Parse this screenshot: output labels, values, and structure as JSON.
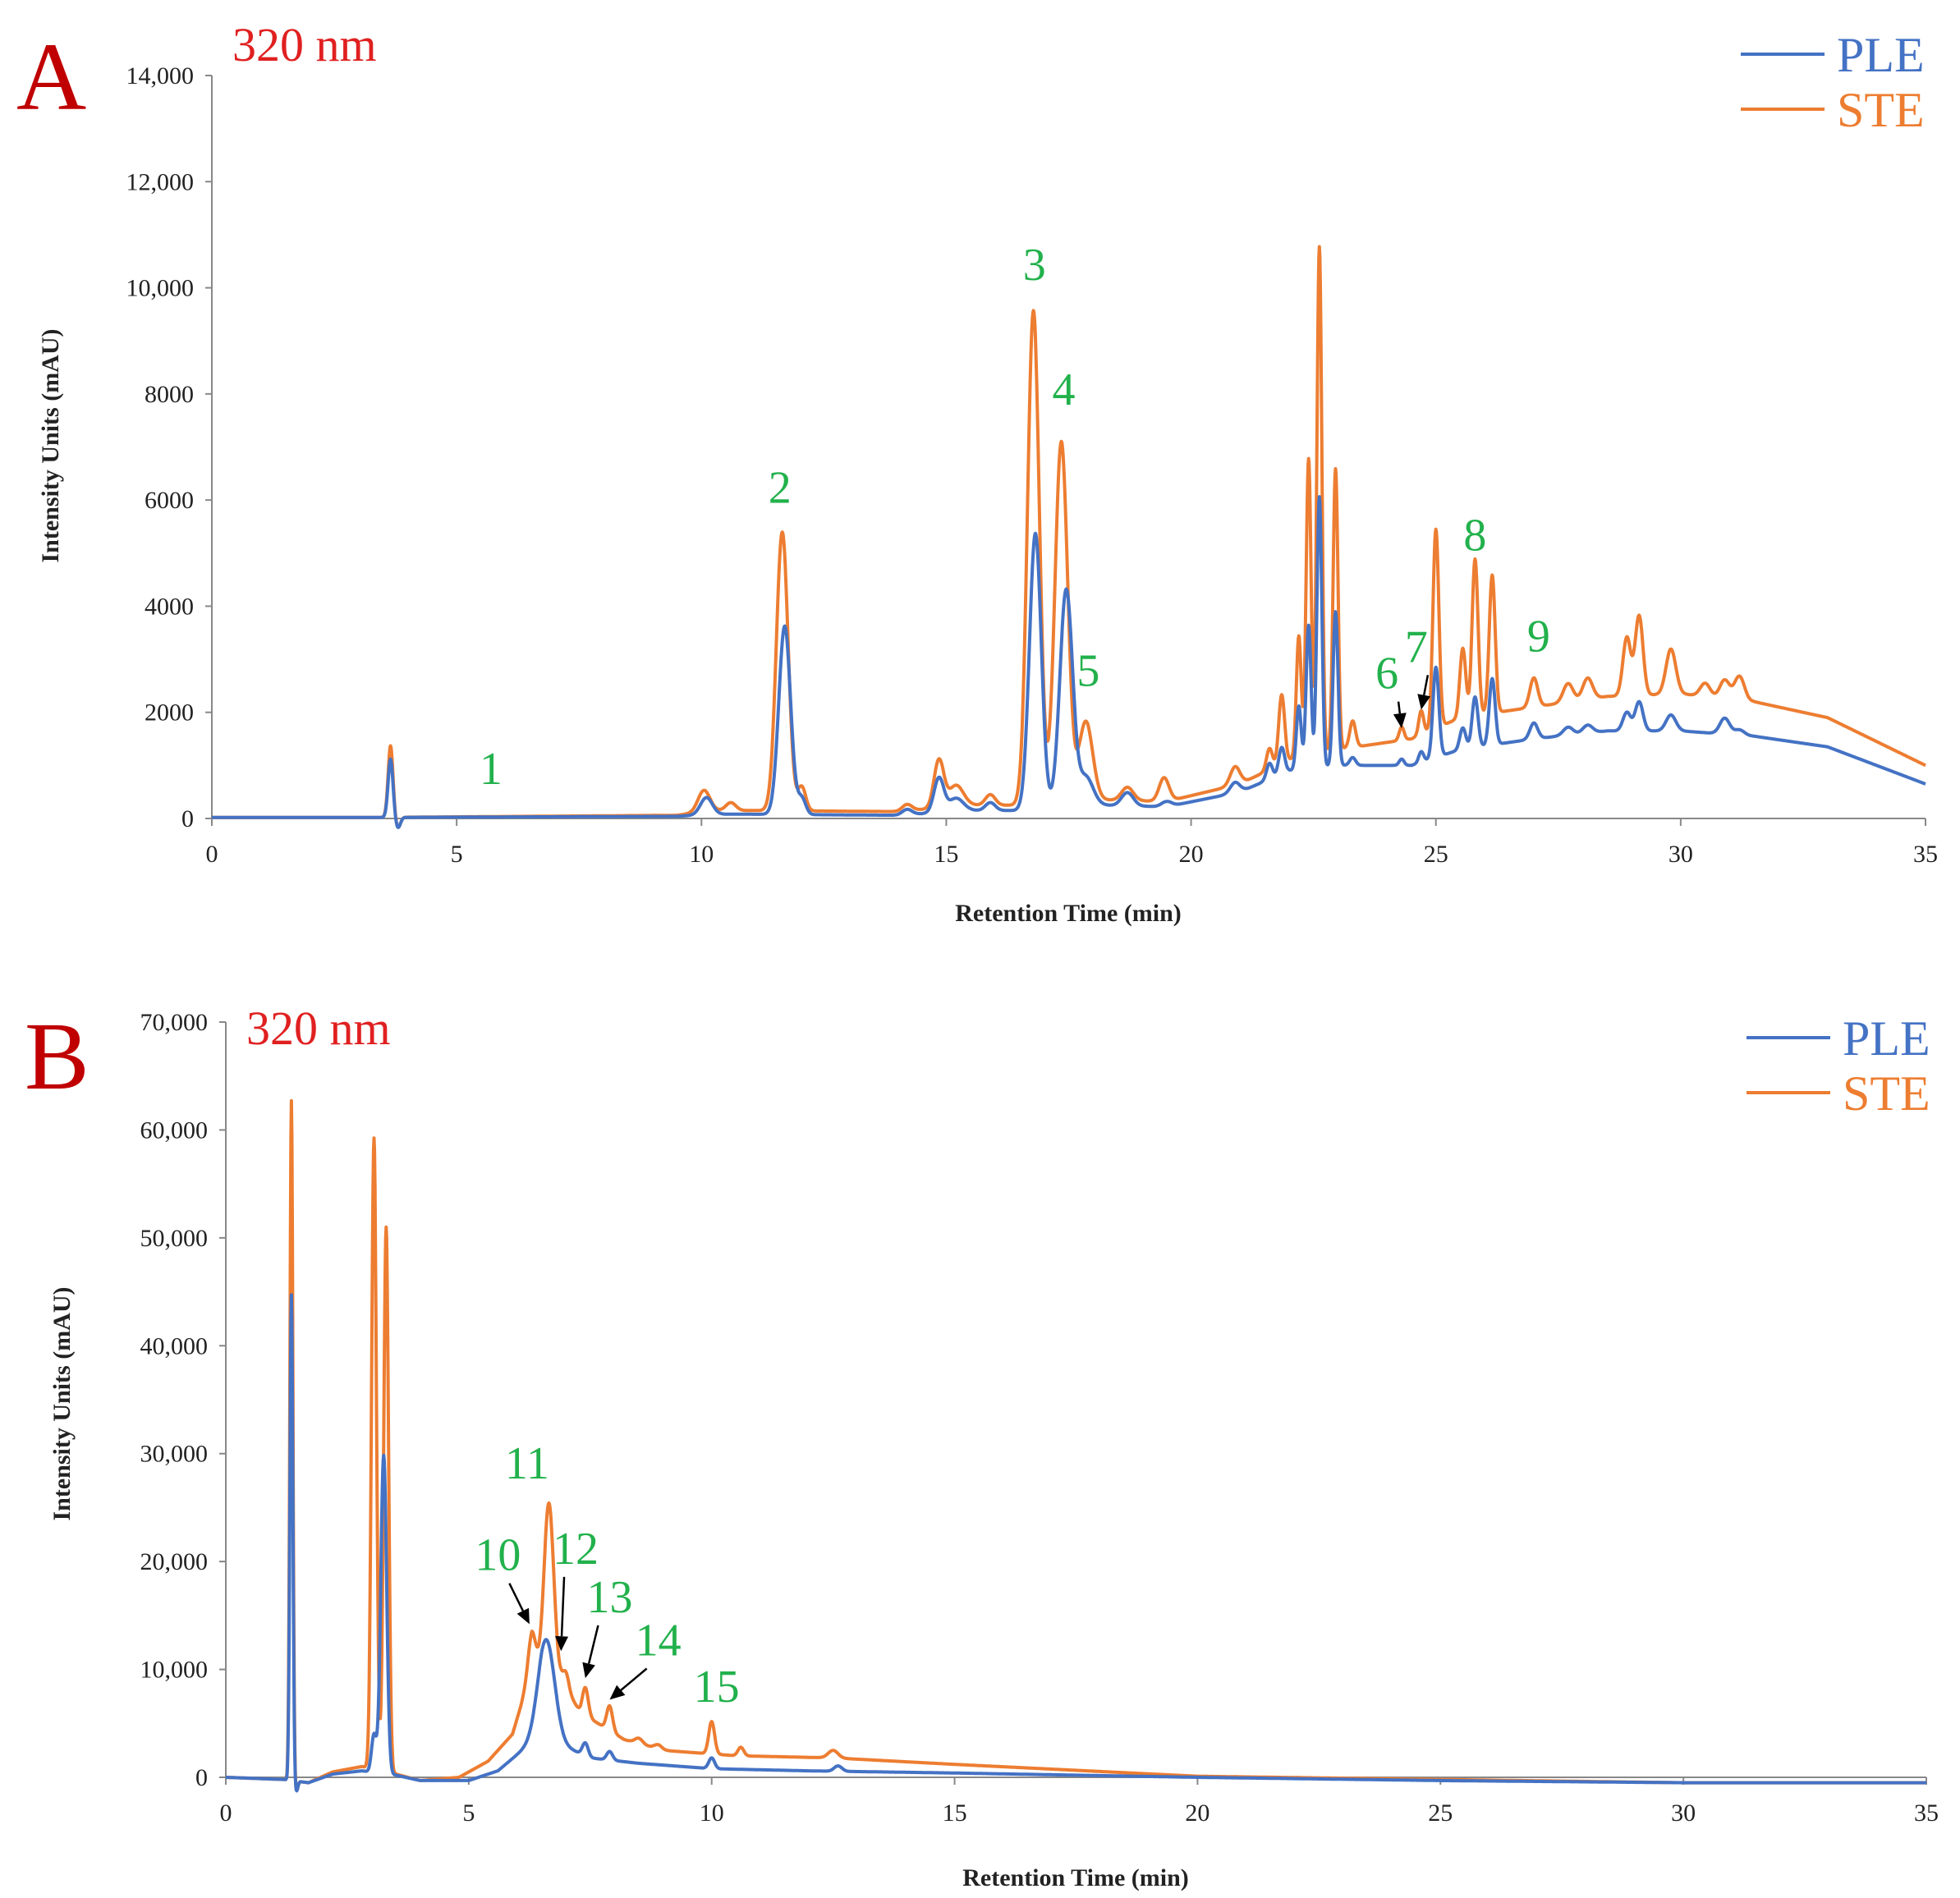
{
  "colors": {
    "PLE": "#4472c4",
    "STE": "#ed7d31",
    "peak": "#22b14c",
    "panel": "#c00000",
    "wavelength": "#e02020"
  },
  "chart_data": [
    {
      "type": "line",
      "panel": "A",
      "title": "320 nm",
      "xlabel": "Retention Time (min)",
      "ylabel": "Intensity Units (mAU)",
      "xlim": [
        0,
        35
      ],
      "ylim": [
        0,
        14000
      ],
      "xticks": [
        0,
        5,
        10,
        15,
        20,
        25,
        30,
        35
      ],
      "xtick_labels": [
        "0",
        "5",
        "10",
        "15",
        "20",
        "25",
        "30",
        "35"
      ],
      "yticks": [
        0,
        2000,
        4000,
        6000,
        8000,
        10000,
        12000,
        14000
      ],
      "ytick_labels": [
        "0",
        "2000",
        "4000",
        "6000",
        "8000",
        "10,000",
        "12,000",
        "14,000"
      ],
      "legend": {
        "position": "top-right",
        "entries": [
          "PLE",
          "STE"
        ]
      },
      "peak_labels": [
        {
          "label": "1",
          "x": 5.7,
          "y": 650
        },
        {
          "label": "2",
          "x": 11.6,
          "y": 5950
        },
        {
          "label": "3",
          "x": 16.8,
          "y": 10150
        },
        {
          "label": "4",
          "x": 17.4,
          "y": 7800
        },
        {
          "label": "5",
          "x": 17.9,
          "y": 2500
        },
        {
          "label": "6",
          "x": 24.0,
          "y": 2450,
          "arrow_to": [
            24.3,
            1700
          ]
        },
        {
          "label": "7",
          "x": 24.6,
          "y": 2950,
          "arrow_to": [
            24.7,
            2050
          ]
        },
        {
          "label": "8",
          "x": 25.8,
          "y": 5050
        },
        {
          "label": "9",
          "x": 27.1,
          "y": 3150
        }
      ],
      "series": [
        {
          "name": "PLE",
          "baseline": [
            [
              0,
              20
            ],
            [
              3.4,
              20
            ],
            [
              9.5,
              40
            ],
            [
              10.2,
              80
            ],
            [
              11,
              80
            ],
            [
              14,
              60
            ],
            [
              15.5,
              150
            ],
            [
              16.4,
              150
            ],
            [
              18.2,
              250
            ],
            [
              19.5,
              220
            ],
            [
              21,
              500
            ],
            [
              22,
              900
            ],
            [
              23,
              1000
            ],
            [
              24.5,
              1000
            ],
            [
              25.5,
              1300
            ],
            [
              27,
              1500
            ],
            [
              28.5,
              1650
            ],
            [
              30,
              1650
            ],
            [
              31.5,
              1550
            ],
            [
              33,
              1350
            ],
            [
              35,
              650
            ]
          ],
          "peaks": [
            [
              3.65,
              1100,
              0.05
            ],
            [
              3.8,
              -200,
              0.05
            ],
            [
              10.1,
              320,
              0.12
            ],
            [
              11.7,
              3550,
              0.12
            ],
            [
              12.05,
              300,
              0.08
            ],
            [
              14.2,
              100,
              0.1
            ],
            [
              14.85,
              650,
              0.1
            ],
            [
              15.2,
              250,
              0.15
            ],
            [
              15.9,
              150,
              0.1
            ],
            [
              16.82,
              5200,
              0.12
            ],
            [
              17.45,
              4100,
              0.13
            ],
            [
              17.85,
              550,
              0.15
            ],
            [
              18.7,
              250,
              0.12
            ],
            [
              19.5,
              100,
              0.1
            ],
            [
              20.9,
              200,
              0.1
            ],
            [
              21.6,
              300,
              0.06
            ],
            [
              21.85,
              500,
              0.06
            ],
            [
              22.2,
              1200,
              0.05
            ],
            [
              22.4,
              2700,
              0.05
            ],
            [
              22.62,
              5100,
              0.05
            ],
            [
              22.95,
              2900,
              0.05
            ],
            [
              23.3,
              150,
              0.06
            ],
            [
              24.3,
              120,
              0.05
            ],
            [
              24.7,
              200,
              0.05
            ],
            [
              25.0,
              1700,
              0.06
            ],
            [
              25.55,
              400,
              0.06
            ],
            [
              25.8,
              950,
              0.06
            ],
            [
              26.15,
              1250,
              0.06
            ],
            [
              27.0,
              300,
              0.08
            ],
            [
              27.7,
              150,
              0.1
            ],
            [
              28.1,
              150,
              0.1
            ],
            [
              28.9,
              350,
              0.08
            ],
            [
              29.15,
              550,
              0.08
            ],
            [
              29.8,
              300,
              0.1
            ],
            [
              30.9,
              300,
              0.1
            ],
            [
              31.2,
              100,
              0.1
            ]
          ]
        },
        {
          "name": "STE",
          "baseline": [
            [
              0,
              20
            ],
            [
              3.4,
              20
            ],
            [
              9.5,
              60
            ],
            [
              10.2,
              150
            ],
            [
              11,
              150
            ],
            [
              14,
              130
            ],
            [
              15.5,
              250
            ],
            [
              16.4,
              250
            ],
            [
              18.2,
              350
            ],
            [
              19.5,
              320
            ],
            [
              21,
              650
            ],
            [
              22,
              1100
            ],
            [
              23,
              1300
            ],
            [
              24.5,
              1500
            ],
            [
              25.5,
              1900
            ],
            [
              27,
              2100
            ],
            [
              28.5,
              2300
            ],
            [
              30,
              2350
            ],
            [
              31.5,
              2200
            ],
            [
              33,
              1900
            ],
            [
              35,
              1000
            ]
          ],
          "peaks": [
            [
              3.65,
              1350,
              0.05
            ],
            [
              3.8,
              -200,
              0.05
            ],
            [
              10.05,
              400,
              0.12
            ],
            [
              10.6,
              150,
              0.1
            ],
            [
              11.65,
              5250,
              0.12
            ],
            [
              12.05,
              450,
              0.08
            ],
            [
              14.2,
              120,
              0.1
            ],
            [
              14.85,
              900,
              0.1
            ],
            [
              15.2,
              400,
              0.15
            ],
            [
              15.9,
              200,
              0.1
            ],
            [
              16.78,
              9300,
              0.12
            ],
            [
              17.35,
              6800,
              0.13
            ],
            [
              17.85,
              1500,
              0.14
            ],
            [
              18.7,
              250,
              0.12
            ],
            [
              19.45,
              450,
              0.1
            ],
            [
              20.9,
              350,
              0.1
            ],
            [
              21.6,
              400,
              0.06
            ],
            [
              21.85,
              1300,
              0.06
            ],
            [
              22.2,
              2300,
              0.05
            ],
            [
              22.4,
              5600,
              0.05
            ],
            [
              22.62,
              9550,
              0.05
            ],
            [
              22.95,
              5300,
              0.05
            ],
            [
              23.3,
              500,
              0.06
            ],
            [
              24.3,
              250,
              0.05
            ],
            [
              24.7,
              450,
              0.05
            ],
            [
              25.0,
              3750,
              0.06
            ],
            [
              25.55,
              1300,
              0.06
            ],
            [
              25.8,
              2950,
              0.06
            ],
            [
              26.15,
              2600,
              0.06
            ],
            [
              27.0,
              550,
              0.08
            ],
            [
              27.7,
              350,
              0.1
            ],
            [
              28.1,
              400,
              0.1
            ],
            [
              28.9,
              1100,
              0.08
            ],
            [
              29.15,
              1500,
              0.08
            ],
            [
              29.8,
              850,
              0.1
            ],
            [
              30.5,
              250,
              0.1
            ],
            [
              30.9,
              350,
              0.1
            ],
            [
              31.2,
              450,
              0.1
            ]
          ]
        }
      ]
    },
    {
      "type": "line",
      "panel": "B",
      "title": "320 nm",
      "xlabel": "Retention Time (min)",
      "ylabel": "Intensity Units (mAU)",
      "xlim": [
        0,
        35
      ],
      "ylim": [
        0,
        70000
      ],
      "xticks": [
        0,
        5,
        10,
        15,
        20,
        25,
        30,
        35
      ],
      "xtick_labels": [
        "0",
        "5",
        "10",
        "15",
        "20",
        "25",
        "30",
        "35"
      ],
      "yticks": [
        0,
        10000,
        20000,
        30000,
        40000,
        50000,
        60000,
        70000
      ],
      "ytick_labels": [
        "0",
        "10,000",
        "20,000",
        "30,000",
        "40,000",
        "50,000",
        "60,000",
        "70,000"
      ],
      "legend": {
        "position": "top-right",
        "entries": [
          "PLE",
          "STE"
        ]
      },
      "peak_labels": [
        {
          "label": "10",
          "x": 5.6,
          "y": 19200,
          "arrow_to": [
            6.25,
            14200
          ]
        },
        {
          "label": "11",
          "x": 6.2,
          "y": 27700
        },
        {
          "label": "12",
          "x": 7.2,
          "y": 19800,
          "arrow_to": [
            6.9,
            11700
          ]
        },
        {
          "label": "13",
          "x": 7.9,
          "y": 15300,
          "arrow_to": [
            7.4,
            9200
          ]
        },
        {
          "label": "14",
          "x": 8.9,
          "y": 11300,
          "arrow_to": [
            7.9,
            7200
          ]
        },
        {
          "label": "15",
          "x": 10.1,
          "y": 7000
        }
      ],
      "series": [
        {
          "name": "PLE",
          "baseline": [
            [
              0,
              0
            ],
            [
              1.2,
              -200
            ],
            [
              1.7,
              -500
            ],
            [
              2.2,
              300
            ],
            [
              2.8,
              600
            ],
            [
              3.5,
              200
            ],
            [
              4.0,
              -300
            ],
            [
              5.0,
              -300
            ],
            [
              5.6,
              600
            ],
            [
              6.1,
              2500
            ],
            [
              6.5,
              4000
            ],
            [
              7.0,
              2800
            ],
            [
              7.5,
              1800
            ],
            [
              8.5,
              1300
            ],
            [
              10,
              800
            ],
            [
              12,
              600
            ],
            [
              15,
              400
            ],
            [
              20,
              0
            ],
            [
              25,
              -300
            ],
            [
              30,
              -500
            ],
            [
              35,
              -500
            ]
          ],
          "peaks": [
            [
              1.35,
              45000,
              0.03
            ],
            [
              1.45,
              -1000,
              0.03
            ],
            [
              3.05,
              3500,
              0.05
            ],
            [
              3.25,
              29500,
              0.06
            ],
            [
              6.6,
              9000,
              0.17
            ],
            [
              7.4,
              1200,
              0.06
            ],
            [
              7.9,
              800,
              0.06
            ],
            [
              10.0,
              1000,
              0.06
            ],
            [
              12.6,
              500,
              0.08
            ]
          ]
        },
        {
          "name": "STE",
          "baseline": [
            [
              0,
              0
            ],
            [
              1.2,
              -200
            ],
            [
              1.7,
              -500
            ],
            [
              2.2,
              500
            ],
            [
              2.8,
              1000
            ],
            [
              3.5,
              300
            ],
            [
              4.0,
              -300
            ],
            [
              4.8,
              0
            ],
            [
              5.4,
              1500
            ],
            [
              5.9,
              4000
            ],
            [
              6.3,
              10000
            ],
            [
              6.9,
              9000
            ],
            [
              7.3,
              6000
            ],
            [
              8.2,
              3500
            ],
            [
              9,
              2500
            ],
            [
              10.5,
              2000
            ],
            [
              12.5,
              1800
            ],
            [
              15,
              1200
            ],
            [
              20,
              100
            ],
            [
              25,
              -200
            ],
            [
              30,
              -500
            ],
            [
              35,
              -500
            ]
          ],
          "peaks": [
            [
              1.35,
              63000,
              0.03
            ],
            [
              1.45,
              -1000,
              0.03
            ],
            [
              3.05,
              58500,
              0.05
            ],
            [
              3.3,
              50500,
              0.05
            ],
            [
              6.3,
              3500,
              0.08
            ],
            [
              6.65,
              16000,
              0.1
            ],
            [
              7.0,
              1500,
              0.06
            ],
            [
              7.4,
              2600,
              0.06
            ],
            [
              7.9,
              2300,
              0.06
            ],
            [
              8.5,
              500,
              0.08
            ],
            [
              8.9,
              400,
              0.08
            ],
            [
              10.0,
              3000,
              0.06
            ],
            [
              10.6,
              800,
              0.06
            ],
            [
              12.5,
              700,
              0.1
            ]
          ]
        }
      ]
    }
  ]
}
